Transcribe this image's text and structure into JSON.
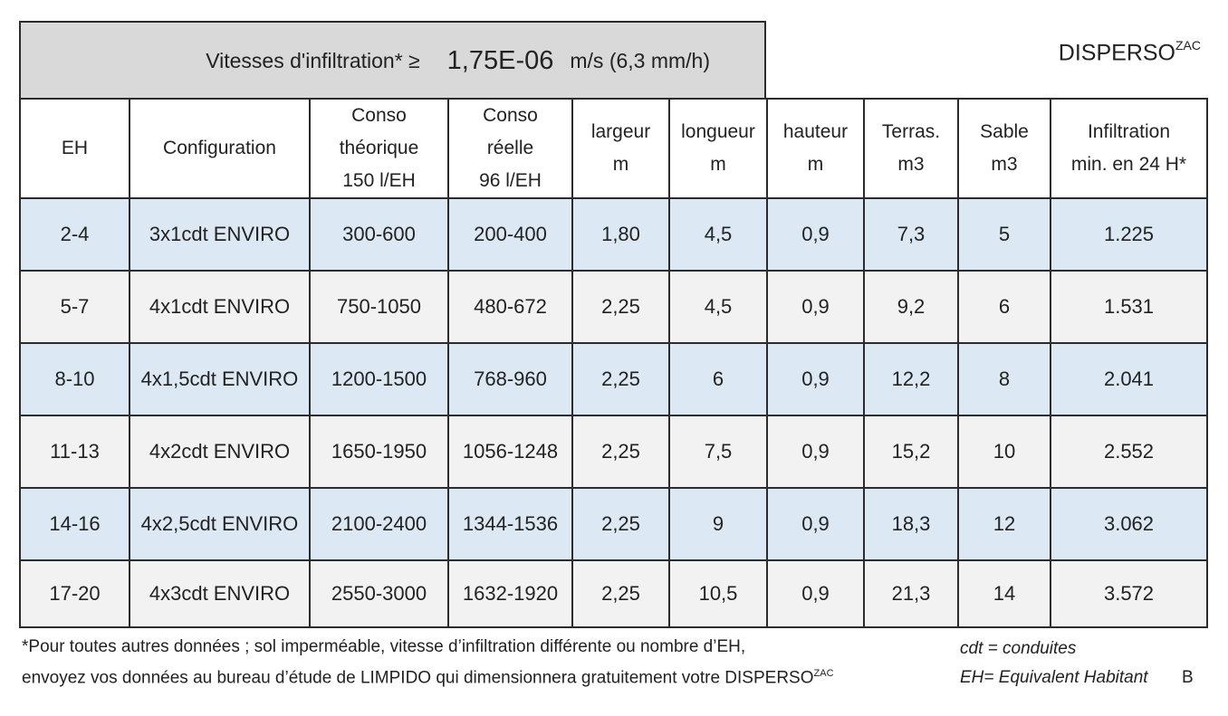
{
  "banner": {
    "label": "Vitesses d'infiltration* ≥",
    "value": "1,75E-06",
    "unit": "m/s (6,3 mm/h)"
  },
  "brand": {
    "name": "DISPERSO",
    "suffix": "ZAC"
  },
  "table": {
    "headers": [
      [
        "EH"
      ],
      [
        "Configuration"
      ],
      [
        "Conso",
        "théorique",
        "150 l/EH"
      ],
      [
        "Conso",
        "réelle",
        "96 l/EH"
      ],
      [
        "largeur",
        "m"
      ],
      [
        "longueur",
        "m"
      ],
      [
        "hauteur",
        "m"
      ],
      [
        "Terras.",
        "m3"
      ],
      [
        "Sable",
        "m3"
      ],
      [
        "Infiltration",
        "min. en 24 H*"
      ]
    ],
    "rows": [
      [
        "2-4",
        "3x1cdt ENVIRO",
        "300-600",
        "200-400",
        "1,80",
        "4,5",
        "0,9",
        "7,3",
        "5",
        "1.225"
      ],
      [
        "5-7",
        "4x1cdt ENVIRO",
        "750-1050",
        "480-672",
        "2,25",
        "4,5",
        "0,9",
        "9,2",
        "6",
        "1.531"
      ],
      [
        "8-10",
        "4x1,5cdt ENVIRO",
        "1200-1500",
        "768-960",
        "2,25",
        "6",
        "0,9",
        "12,2",
        "8",
        "2.041"
      ],
      [
        "11-13",
        "4x2cdt ENVIRO",
        "1650-1950",
        "1056-1248",
        "2,25",
        "7,5",
        "0,9",
        "15,2",
        "10",
        "2.552"
      ],
      [
        "14-16",
        "4x2,5cdt ENVIRO",
        "2100-2400",
        "1344-1536",
        "2,25",
        "9",
        "0,9",
        "18,3",
        "12",
        "3.062"
      ],
      [
        "17-20",
        "4x3cdt ENVIRO",
        "2550-3000",
        "1632-1920",
        "2,25",
        "10,5",
        "0,9",
        "21,3",
        "14",
        "3.572"
      ]
    ]
  },
  "footnote": {
    "line1": "*Pour toutes autres données ; sol imperméable, vitesse d’infiltration différente ou nombre d’EH,",
    "line2": "envoyez vos données au bureau d’étude de LIMPIDO qui dimensionnera gratuitement votre DISPERSO",
    "line2_suffix": "ZAC"
  },
  "legend": {
    "cdt": "cdt = conduites",
    "eh": "EH= Equivalent Habitant"
  },
  "version": "B",
  "colors": {
    "banner_bg": "#d9d9d9",
    "row_blue": "#dce8f4",
    "row_grey": "#f2f2f2",
    "border": "#2b2b2b"
  }
}
